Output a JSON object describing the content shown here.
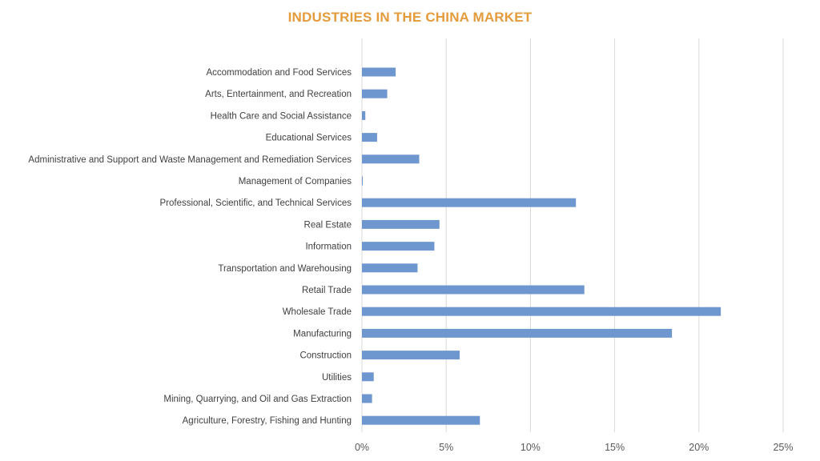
{
  "chart_data": {
    "type": "bar",
    "orientation": "horizontal",
    "title": "INDUSTRIES IN THE CHINA MARKET",
    "title_color": "#E49B3B",
    "bar_color": "#6F97CF",
    "grid_color": "#D9D9D9",
    "categories": [
      "Accommodation and Food Services",
      "Arts, Entertainment, and Recreation",
      "Health Care and Social Assistance",
      "Educational Services",
      "Administrative and Support and Waste Management and Remediation Services",
      "Management of Companies",
      "Professional, Scientific, and Technical Services",
      "Real Estate",
      "Information",
      "Transportation and Warehousing",
      "Retail Trade",
      "Wholesale Trade",
      "Manufacturing",
      "Construction",
      "Utilities",
      "Mining, Quarrying, and Oil and Gas Extraction",
      "Agriculture, Forestry, Fishing and Hunting"
    ],
    "values": [
      2.0,
      1.5,
      0.2,
      0.9,
      3.4,
      0.05,
      12.7,
      4.6,
      4.3,
      3.3,
      13.2,
      21.3,
      18.4,
      5.8,
      0.7,
      0.6,
      7.0
    ],
    "xlim": [
      0,
      25
    ],
    "xticks": [
      0,
      5,
      10,
      15,
      20,
      25
    ],
    "xtick_labels": [
      "0%",
      "5%",
      "10%",
      "15%",
      "20%",
      "25%"
    ],
    "grid": true,
    "legend": "none"
  }
}
